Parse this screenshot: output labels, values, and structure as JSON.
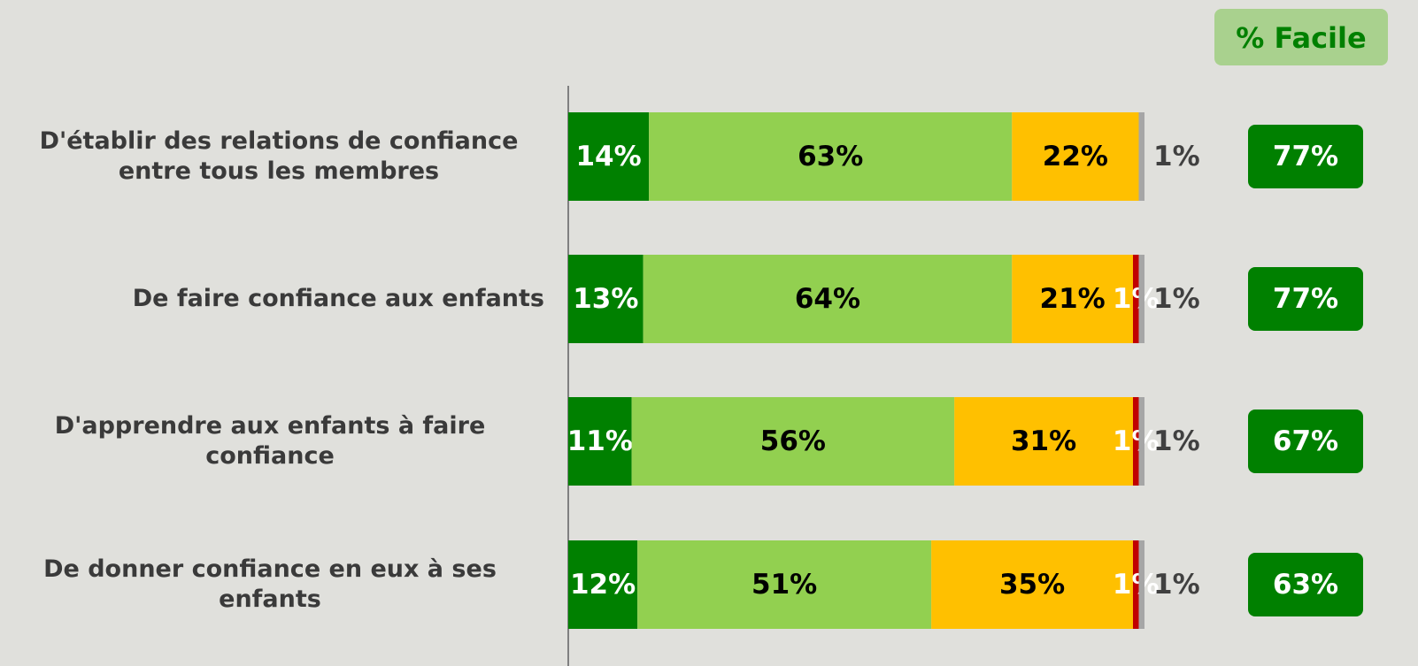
{
  "chart_data": {
    "type": "stacked-bar-horizontal",
    "categories": [
      "D'établir des relations de confiance entre tous les membres",
      "De faire confiance aux enfants",
      "D'apprendre aux enfants à faire confiance",
      "De donner confiance en eux à ses enfants"
    ],
    "xlim": [
      0,
      100
    ],
    "series": [
      {
        "color": "#008000",
        "label_color": "#ffffff",
        "values": [
          14,
          13,
          11,
          12
        ],
        "value_labels": [
          "14%",
          "13%",
          "11%",
          "12%"
        ]
      },
      {
        "color": "#92d050",
        "label_color": "#000000",
        "values": [
          63,
          64,
          56,
          51
        ],
        "value_labels": [
          "63%",
          "64%",
          "56%",
          "51%"
        ]
      },
      {
        "color": "#ffc000",
        "label_color": "#000000",
        "values": [
          22,
          21,
          31,
          35
        ],
        "value_labels": [
          "22%",
          "21%",
          "31%",
          "35%"
        ]
      },
      {
        "color": "#c00000",
        "label_color": "#ffffff",
        "values": [
          null,
          1,
          1,
          1
        ],
        "value_labels": [
          null,
          "1%",
          "1%",
          "1%"
        ]
      },
      {
        "color": "#a6a6a6",
        "label_color": "#404040",
        "values": [
          1,
          1,
          1,
          1
        ],
        "value_labels": [
          "1%",
          "1%",
          "1%",
          "1%"
        ]
      }
    ],
    "facile_title": "% Facile",
    "facile_values": [
      77,
      77,
      67,
      63
    ],
    "facile_labels": [
      "77%",
      "77%",
      "67%",
      "63%"
    ]
  }
}
